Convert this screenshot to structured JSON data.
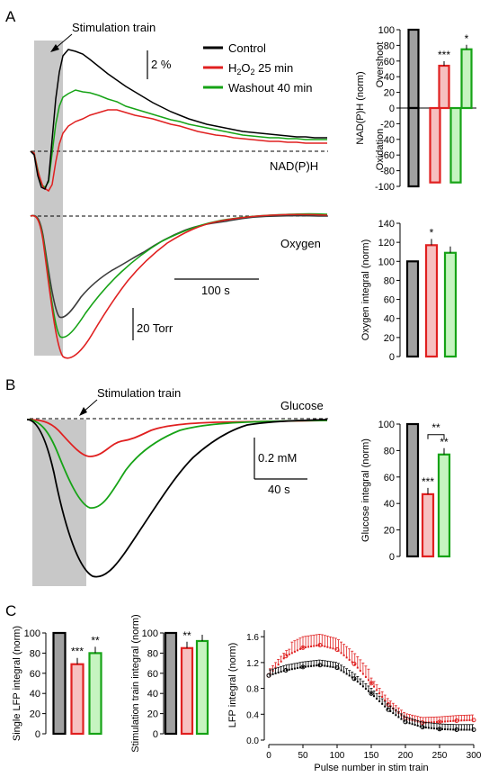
{
  "panels": {
    "a": "A",
    "b": "B",
    "c": "C"
  },
  "colors": {
    "control": "#000000",
    "h2o2": "#e02020",
    "washout": "#16a316",
    "gray_fill": "#a0a0a0",
    "h2o2_fill": "#f6c0c0",
    "washout_fill": "#c6f4c0",
    "dark_trace": "#3c3c3c",
    "shade": "#c8c8c8"
  },
  "panel_a": {
    "stim_label": "Stimulation train",
    "legend": [
      {
        "label": "Control",
        "color": "#000000"
      },
      {
        "label_main": "H",
        "label_sub": "2",
        "label_main2": "O",
        "label_sub2": "2",
        "label_tail": " 25 min",
        "color": "#e02020"
      },
      {
        "label": "Washout 40 min",
        "color": "#16a316"
      }
    ],
    "nadph_label": "NAD(P)H",
    "oxygen_label": "Oxygen",
    "scale_pct": "2 %",
    "scale_time": "100 s",
    "scale_torr": "20 Torr"
  },
  "panel_b": {
    "stim_label": "Stimulation train",
    "glucose_label": "Glucose",
    "scale_mm": "0.2 mM",
    "scale_time": "40 s"
  },
  "chart_data": [
    {
      "id": "nadph_bar",
      "type": "bar",
      "ylabel": "NAD(P)H (norm)",
      "group_labels": [
        "Overshoot",
        "Oxidation"
      ],
      "ylim": [
        -100,
        100
      ],
      "yticks": [
        "100",
        "80",
        "60",
        "40",
        "20",
        "0",
        "-20",
        "-40",
        "-60",
        "-80",
        "-100"
      ],
      "overshoot": [
        100,
        0,
        54,
        75
      ],
      "oxidation": [
        -100,
        -100,
        -95,
        -95
      ],
      "stars": [
        "",
        "",
        "***",
        "*"
      ]
    },
    {
      "id": "oxygen_bar",
      "type": "bar",
      "ylabel": "Oxygen integral (norm)",
      "ylim": [
        0,
        140
      ],
      "yticks": [
        "140",
        "120",
        "100",
        "80",
        "60",
        "40",
        "20",
        "0"
      ],
      "values": [
        100,
        117,
        109
      ],
      "stars": [
        "",
        "*",
        ""
      ]
    },
    {
      "id": "glucose_bar",
      "type": "bar",
      "ylabel": "Glucose integral (norm)",
      "ylim": [
        0,
        100
      ],
      "yticks": [
        "100",
        "80",
        "60",
        "40",
        "20",
        "0"
      ],
      "values": [
        100,
        47,
        77
      ],
      "stars": [
        "",
        "***",
        "**"
      ],
      "bracket_stars": "**"
    },
    {
      "id": "lfp_single_bar",
      "type": "bar",
      "ylabel": "Single LFP integral  (norm)",
      "ylim": [
        0,
        100
      ],
      "yticks": [
        "100",
        "80",
        "60",
        "40",
        "20",
        "0"
      ],
      "values": [
        100,
        69,
        80
      ],
      "stars": [
        "",
        "***",
        "**"
      ]
    },
    {
      "id": "stim_train_bar",
      "type": "bar",
      "ylabel": "Stimulation train integral (norm)",
      "ylim": [
        0,
        100
      ],
      "yticks": [
        "100",
        "80",
        "60",
        "40",
        "20",
        "0"
      ],
      "values": [
        100,
        85,
        92
      ],
      "stars": [
        "",
        "**",
        ""
      ]
    },
    {
      "id": "lfp_scatter",
      "type": "scatter",
      "xlabel": "Pulse number in stim train",
      "ylabel": "LFP integral (norm)",
      "xlim": [
        0,
        300
      ],
      "ylim": [
        0,
        1.7
      ],
      "xticks": [
        "0",
        "50",
        "100",
        "150",
        "200",
        "250",
        "300"
      ],
      "yticks": [
        "1.6",
        "1.2",
        "0.8",
        "0.4",
        "0.0"
      ],
      "series": [
        {
          "color": "#e02020",
          "x": [
            0,
            25,
            50,
            75,
            100,
            125,
            150,
            175,
            200,
            225,
            250,
            275,
            300
          ],
          "y": [
            1.0,
            1.3,
            1.43,
            1.47,
            1.4,
            1.18,
            0.88,
            0.55,
            0.33,
            0.27,
            0.28,
            0.3,
            0.31
          ]
        },
        {
          "color": "#000000",
          "x": [
            0,
            25,
            50,
            75,
            100,
            125,
            150,
            175,
            200,
            225,
            250,
            275,
            300
          ],
          "y": [
            1.0,
            1.08,
            1.13,
            1.16,
            1.12,
            0.95,
            0.72,
            0.47,
            0.28,
            0.2,
            0.17,
            0.16,
            0.16
          ]
        }
      ]
    }
  ]
}
